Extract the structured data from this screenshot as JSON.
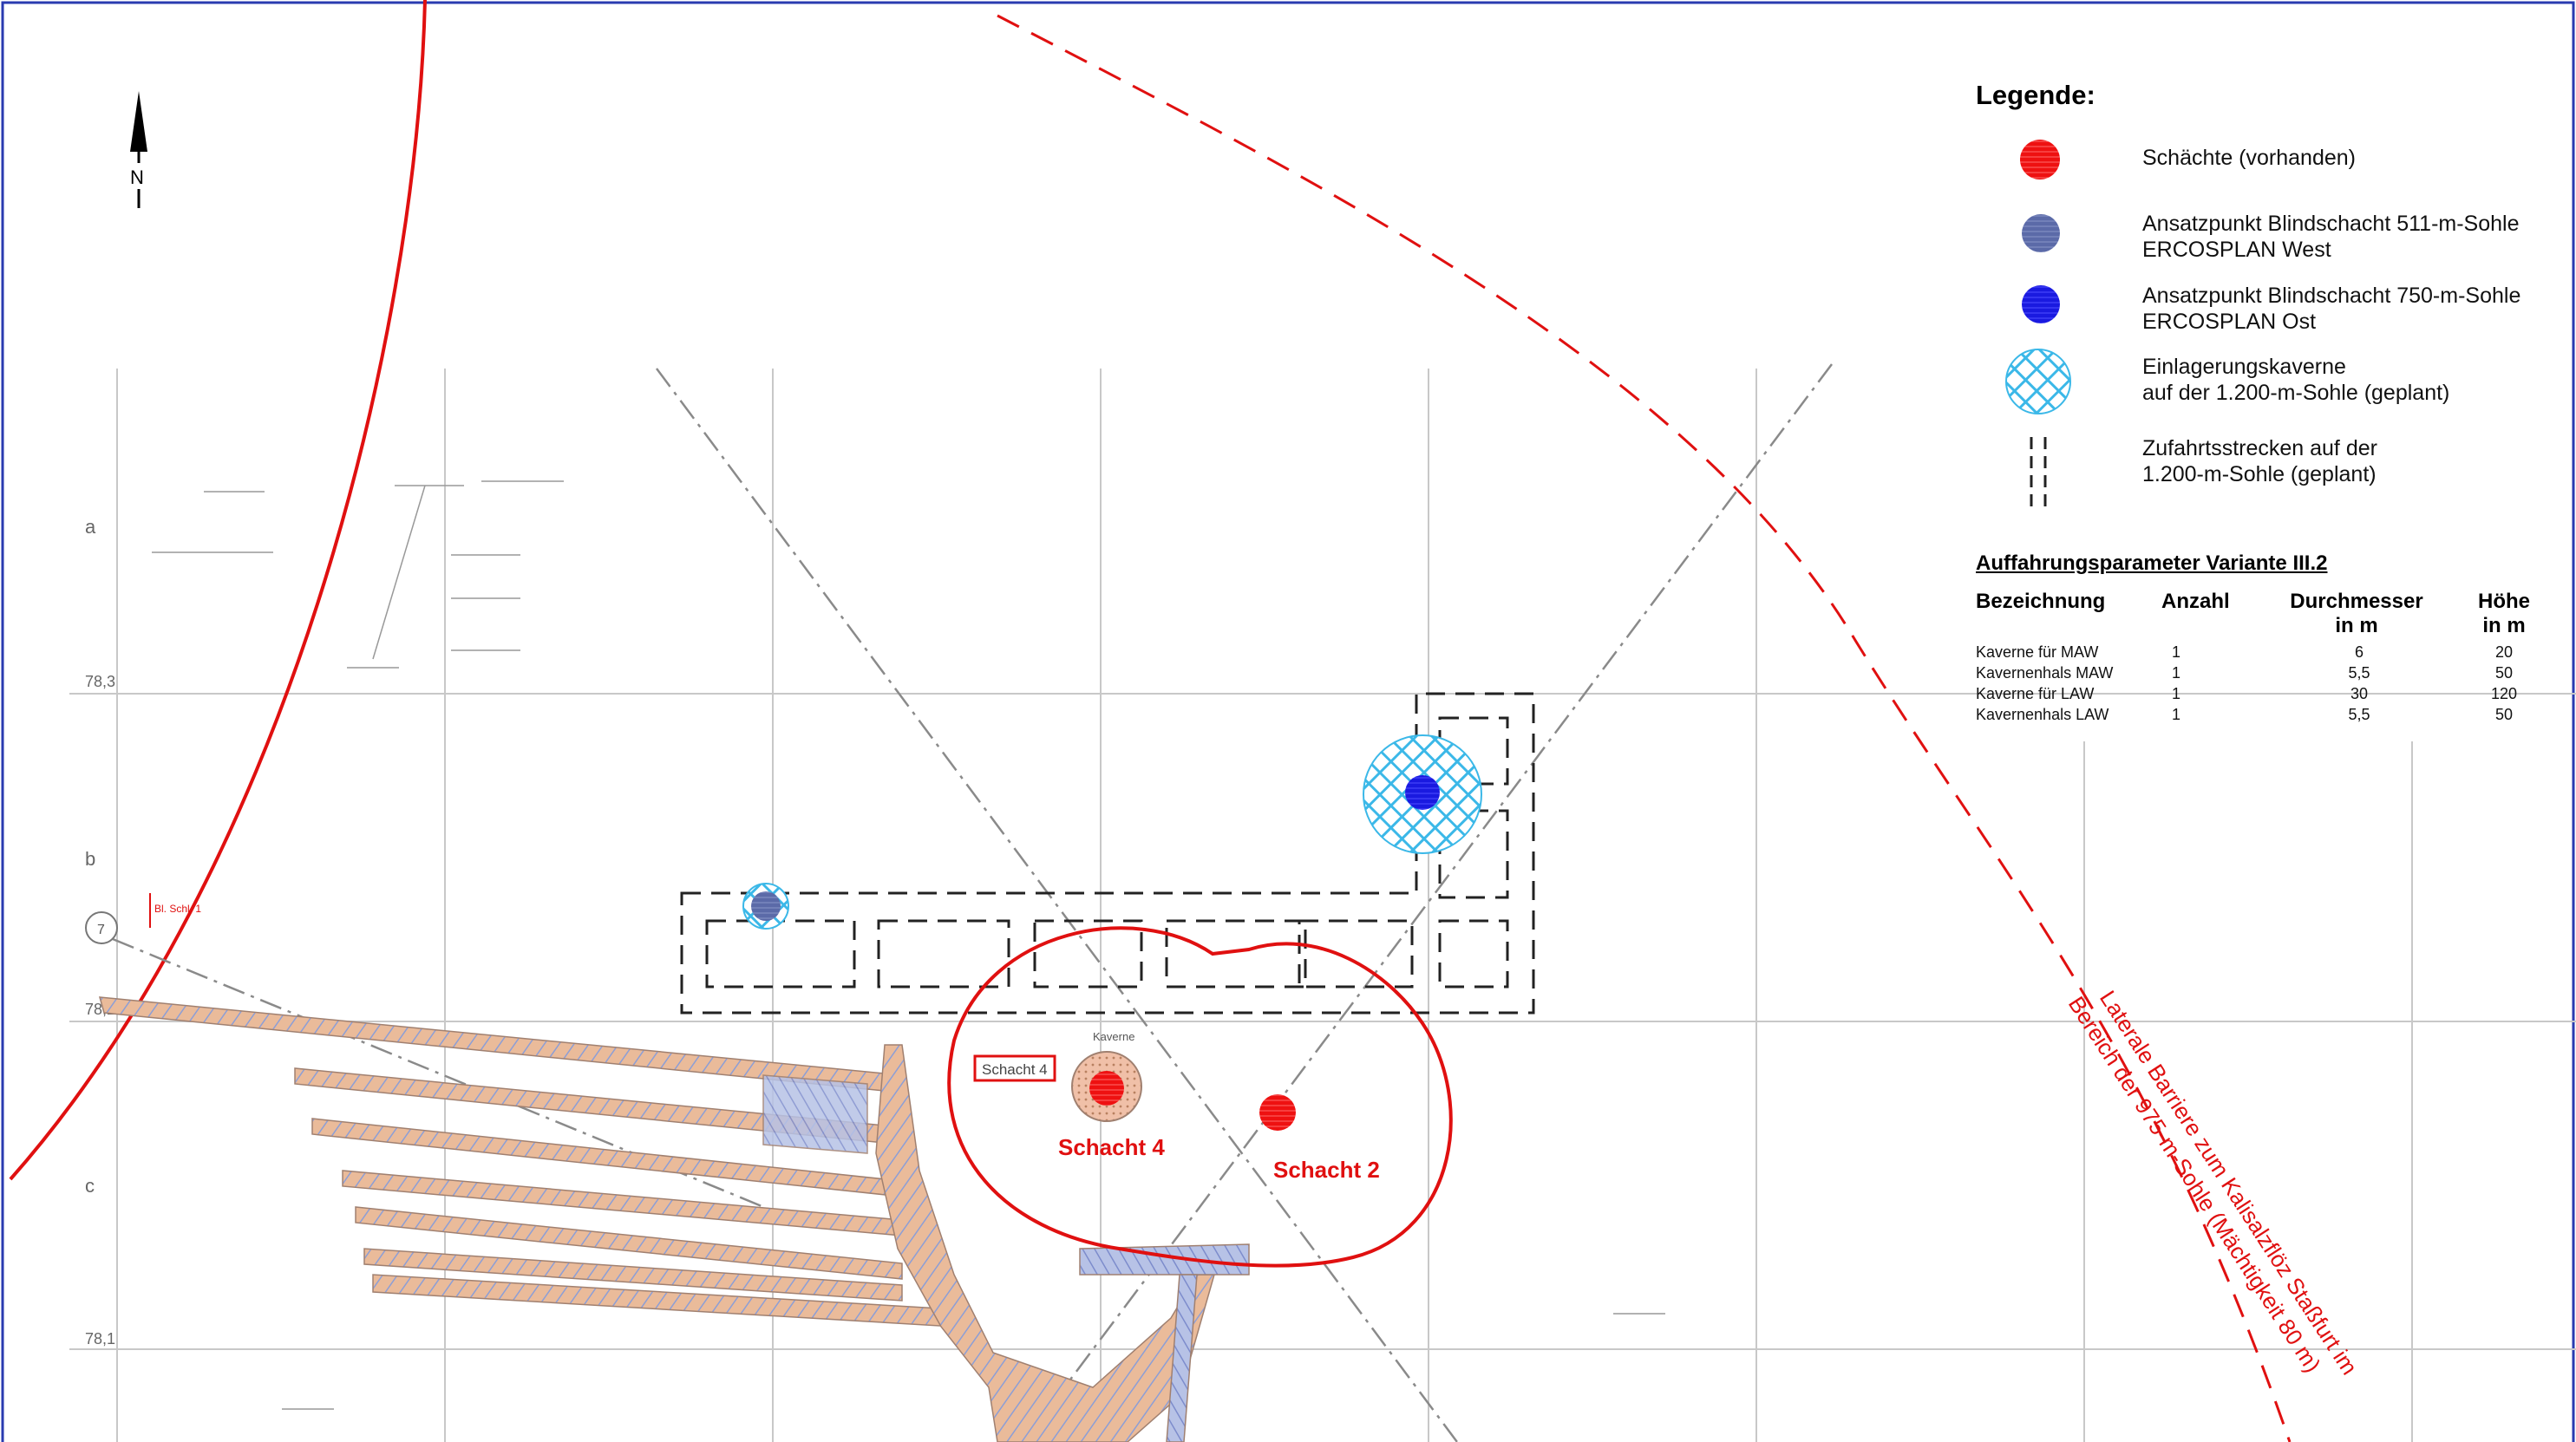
{
  "map": {
    "north_label": "N",
    "grid_row_labels": [
      "a",
      "b",
      "c"
    ],
    "grid_coord_labels": [
      "78,3",
      "78,2",
      "78,1"
    ],
    "shafts": [
      {
        "label": "Schacht 4",
        "box_label": "Schacht 4",
        "note": "Kaverne"
      },
      {
        "label": "Schacht 2"
      }
    ],
    "small_labels": [
      "Bl. Schl. 1",
      "7"
    ],
    "barrier_line1": "Laterale Barriere zum Kalisalzflöz Staßfurt im",
    "barrier_line2": "Bereich der 975-m-Sohle (Mächtigkeit 80 m)",
    "colors": {
      "shaft_red": "#ee1111",
      "blind_west": "#5b6aa8",
      "blind_east": "#1a1ae0",
      "cavern_hatch": "#3bb8e8",
      "barrier_red": "#e01010",
      "drift_fill": "#e8b898",
      "drift_hatch": "#8fa0d8"
    }
  },
  "legend": {
    "title": "Legende:",
    "items": [
      {
        "line1": "Schächte (vorhanden)",
        "line2": "",
        "symbol": "red-circle"
      },
      {
        "line1": "Ansatzpunkt Blindschacht 511-m-Sohle",
        "line2": "ERCOSPLAN West",
        "symbol": "grey-blue-circle"
      },
      {
        "line1": "Ansatzpunkt Blindschacht 750-m-Sohle",
        "line2": "ERCOSPLAN Ost",
        "symbol": "blue-circle"
      },
      {
        "line1": "Einlagerungskaverne",
        "line2": "auf der 1.200-m-Sohle (geplant)",
        "symbol": "hatched-cyan-circle"
      },
      {
        "line1": "Zufahrtsstrecken auf der",
        "line2": "1.200-m-Sohle (geplant)",
        "symbol": "dashed-lines"
      }
    ]
  },
  "parameters": {
    "title": "Auffahrungsparameter Variante III.2",
    "headers": {
      "name": "Bezeichnung",
      "count": "Anzahl",
      "diameter_line1": "Durchmesser",
      "diameter_line2": "in m",
      "height_line1": "Höhe",
      "height_line2": "in m"
    },
    "rows": [
      {
        "name": "Kaverne für MAW",
        "count": "1",
        "diameter": "6",
        "height": "20"
      },
      {
        "name": "Kavernenhals MAW",
        "count": "1",
        "diameter": "5,5",
        "height": "50"
      },
      {
        "name": "Kaverne für LAW",
        "count": "1",
        "diameter": "30",
        "height": "120"
      },
      {
        "name": "Kavernenhals LAW",
        "count": "1",
        "diameter": "5,5",
        "height": "50"
      }
    ]
  }
}
